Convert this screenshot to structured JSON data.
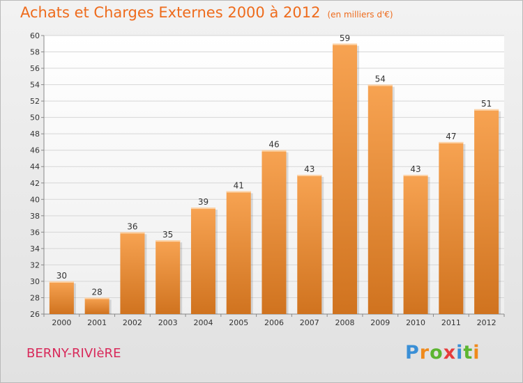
{
  "header": {
    "title": "Achats et Charges Externes 2000 à 2012",
    "unit": "(en milliers d'€)"
  },
  "footer": {
    "location": "BERNY-RIVIèRE",
    "logo_text": "Proxiti"
  },
  "colors": {
    "bar_light": "#f7a352",
    "bar_dark": "#d0731f",
    "title": "#ee6b1c",
    "location": "#d8295a"
  },
  "chart_data": {
    "type": "bar",
    "title": "Achats et Charges Externes 2000 à 2012",
    "subtitle": "(en milliers d'€)",
    "categories": [
      "2000",
      "2001",
      "2002",
      "2003",
      "2004",
      "2005",
      "2006",
      "2007",
      "2008",
      "2009",
      "2010",
      "2011",
      "2012"
    ],
    "values": [
      30,
      28,
      36,
      35,
      39,
      41,
      46,
      43,
      59,
      54,
      43,
      47,
      51
    ],
    "ylim": [
      26,
      60
    ],
    "yticks": [
      26,
      28,
      30,
      32,
      34,
      36,
      38,
      40,
      42,
      44,
      46,
      48,
      50,
      52,
      54,
      56,
      58,
      60
    ],
    "grid": true,
    "data_labels": true
  }
}
